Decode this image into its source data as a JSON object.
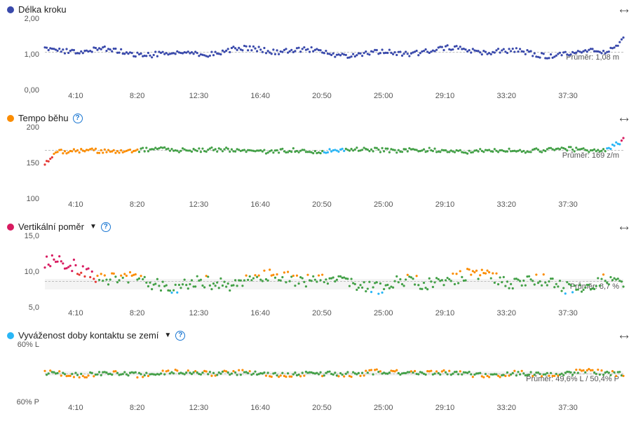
{
  "xaxis_labels": [
    "4:10",
    "8:20",
    "12:30",
    "16:40",
    "20:50",
    "25:00",
    "29:10",
    "33:20",
    "37:30"
  ],
  "charts": [
    {
      "id": "stride",
      "title": "Délka kroku",
      "legend_color": "#3949ab",
      "has_caret": false,
      "has_help": false,
      "ylim": [
        0.0,
        2.0
      ],
      "yticks": [
        0.0,
        1.0,
        2.0
      ],
      "ytick_labels": [
        "0,00",
        "1,00",
        "2,00"
      ],
      "avg_y": 1.08,
      "avg_label": "Průměr: 1,08 m",
      "marker_r": 1.6,
      "series": [
        {
          "color": "#3949ab",
          "rgen": {
            "base": 1.08,
            "amp": 0.16,
            "noise": 0.07,
            "endKick": 0.35
          }
        }
      ]
    },
    {
      "id": "cadence",
      "title": "Tempo běhu",
      "legend_color": "#fb8c00",
      "has_caret": false,
      "has_help": true,
      "ylim": [
        100,
        200
      ],
      "yticks": [
        100,
        150,
        200
      ],
      "ytick_labels": [
        "100",
        "150",
        "200"
      ],
      "avg_y": 169,
      "avg_label": "Průměr: 169 z/m",
      "marker_r": 1.6,
      "series": [
        {
          "color_fn": "cadence",
          "rgen": {
            "base": 168,
            "amp": 3,
            "noise": 3,
            "startDrop": -18,
            "endKick": 14
          }
        }
      ]
    },
    {
      "id": "vratio",
      "title": "Vertikální poměr",
      "legend_color": "#d81b60",
      "has_caret": true,
      "has_help": true,
      "ylim": [
        5.0,
        15.0
      ],
      "yticks": [
        5.0,
        10.0,
        15.0
      ],
      "ytick_labels": [
        "5,0",
        "10,0",
        "15,0"
      ],
      "avg_y": 8.7,
      "avg_label": "Průměr: 8,7 %",
      "avg_band": [
        7.5,
        9.0
      ],
      "marker_r": 1.6,
      "series": [
        {
          "color_fn": "vratio",
          "rgen": {
            "base": 8.7,
            "amp": 1.4,
            "noise": 0.9,
            "startKick": 2.8
          }
        }
      ]
    },
    {
      "id": "gct",
      "title": "Vyváženost doby kontaktu se zemí",
      "legend_color": "#29b6f6",
      "has_caret": true,
      "has_help": true,
      "short": true,
      "ylim": [
        40,
        60
      ],
      "yticks": [
        40,
        60
      ],
      "ytick_labels": [
        "60% P",
        "60% L"
      ],
      "avg_y": 50,
      "avg_label": "Průměr: 49,6% L / 50,4% P",
      "avg_band": [
        49.2,
        50.8
      ],
      "marker_r": 1.6,
      "series": [
        {
          "color_fn": "gct",
          "rgen": {
            "base": 50,
            "amp": 0.9,
            "noise": 0.9
          }
        }
      ]
    }
  ],
  "colors": {
    "blue": "#3949ab",
    "orange": "#fb8c00",
    "green": "#43a047",
    "cyan": "#29b6f6",
    "magenta": "#d81b60",
    "red": "#e53935"
  }
}
